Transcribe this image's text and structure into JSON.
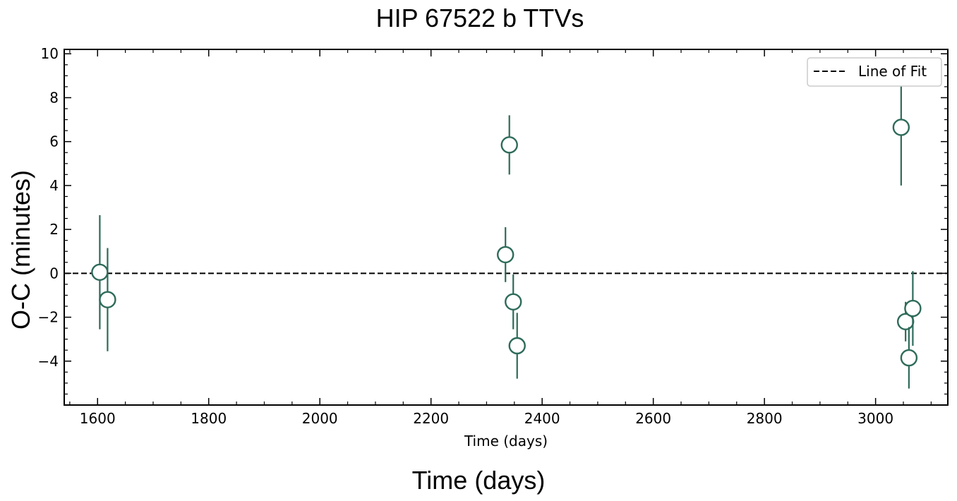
{
  "chart_data": {
    "type": "scatter",
    "title": "HIP 67522 b TTVs",
    "xlabel": "Time (days)",
    "xlabel_outer": "Time (days)",
    "ylabel": "O-C (minutes)",
    "xlim": [
      1540,
      3130
    ],
    "ylim": [
      -6,
      10.2
    ],
    "xticks": [
      1600,
      1800,
      2000,
      2200,
      2400,
      2600,
      2800,
      3000
    ],
    "yticks": [
      -4,
      -2,
      0,
      2,
      4,
      6,
      8,
      10
    ],
    "xtick_labels": [
      "1600",
      "1800",
      "2000",
      "2200",
      "2400",
      "2600",
      "2800",
      "3000"
    ],
    "ytick_labels": [
      "−4",
      "−2",
      "0",
      "2",
      "4",
      "6",
      "8",
      "10"
    ],
    "grid": false,
    "legend": {
      "placement": "top-right",
      "entries": [
        "Line of Fit"
      ]
    },
    "line_of_fit": {
      "name": "Line of Fit",
      "y": 0,
      "style": "dashed",
      "color": "#000000"
    },
    "series": [
      {
        "marker_edge_color": "#2e6b5a",
        "marker_face_color": "#ffffff",
        "points": [
          {
            "x": 1604,
            "y": 0.05,
            "yerr": 2.6
          },
          {
            "x": 1618,
            "y": -1.2,
            "yerr": 2.35
          },
          {
            "x": 2334,
            "y": 0.85,
            "yerr": 1.25
          },
          {
            "x": 2341,
            "y": 5.85,
            "yerr": 1.35
          },
          {
            "x": 2348,
            "y": -1.3,
            "yerr": 1.25
          },
          {
            "x": 2355,
            "y": -3.3,
            "yerr": 1.5
          },
          {
            "x": 3046,
            "y": 6.65,
            "yerr": 2.65
          },
          {
            "x": 3054,
            "y": -2.2,
            "yerr": 0.9
          },
          {
            "x": 3060,
            "y": -3.85,
            "yerr": 1.4
          },
          {
            "x": 3067,
            "y": -1.6,
            "yerr": 1.7
          }
        ]
      }
    ]
  }
}
